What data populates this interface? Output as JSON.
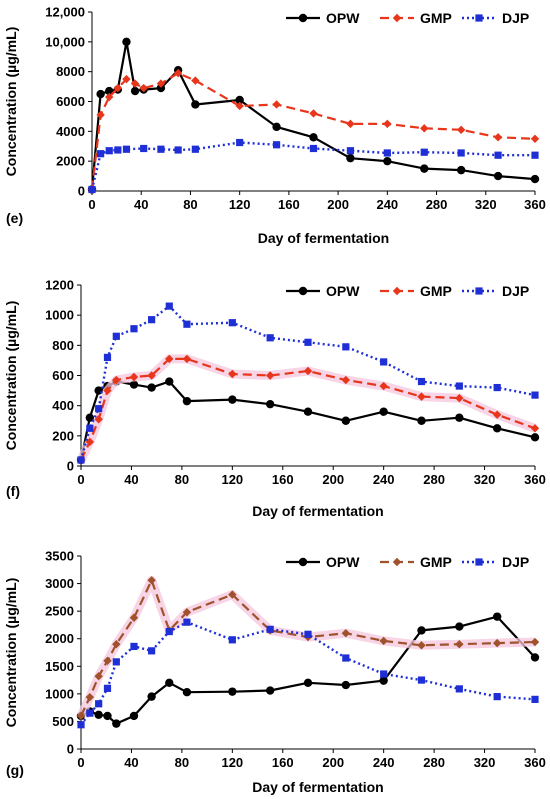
{
  "colors": {
    "OPW": "#000000",
    "GMP": "#e8361c",
    "DJP": "#1f2fd6",
    "GMP_g": "#a0522d",
    "band": "#f4c6de"
  },
  "chart_data": [
    {
      "type": "line",
      "panel_label": "(e)",
      "xlabel": "Day of fermentation",
      "ylabel": "Concentration (µg/mL)",
      "xlim": [
        0,
        360
      ],
      "ylim": [
        0,
        12000
      ],
      "xticks": [
        0,
        40,
        80,
        120,
        160,
        200,
        240,
        280,
        320,
        360
      ],
      "yticks": [
        0,
        2000,
        4000,
        6000,
        8000,
        10000,
        12000
      ],
      "ytick_labels": [
        "0",
        "2000",
        "4000",
        "6000",
        "8000",
        "10,000",
        "12,000"
      ],
      "grid": false,
      "legend": "top-right",
      "series": [
        {
          "name": "OPW",
          "x": [
            0,
            7,
            14,
            21,
            28,
            35,
            42,
            56,
            70,
            84,
            120,
            150,
            180,
            210,
            240,
            270,
            300,
            330,
            360
          ],
          "y": [
            100,
            6500,
            6700,
            6800,
            10000,
            6700,
            6800,
            6900,
            8100,
            5800,
            6100,
            4300,
            3600,
            2200,
            2000,
            1500,
            1400,
            1000,
            800
          ]
        },
        {
          "name": "GMP",
          "x": [
            0,
            7,
            14,
            21,
            28,
            35,
            42,
            56,
            70,
            84,
            120,
            150,
            180,
            210,
            240,
            270,
            300,
            330,
            360
          ],
          "y": [
            100,
            5100,
            6300,
            6900,
            7500,
            7200,
            6900,
            7200,
            7900,
            7400,
            5700,
            5800,
            5200,
            4500,
            4500,
            4200,
            4100,
            3600,
            3500
          ]
        },
        {
          "name": "DJP",
          "x": [
            0,
            7,
            14,
            21,
            28,
            42,
            56,
            70,
            84,
            120,
            150,
            180,
            210,
            240,
            270,
            300,
            330,
            360
          ],
          "y": [
            100,
            2500,
            2700,
            2750,
            2800,
            2850,
            2800,
            2750,
            2800,
            3250,
            3100,
            2850,
            2700,
            2550,
            2600,
            2550,
            2400,
            2400
          ]
        }
      ]
    },
    {
      "type": "line",
      "panel_label": "(f)",
      "xlabel": "Day of fermentation",
      "ylabel": "Concentration (µg/mL)",
      "xlim": [
        0,
        360
      ],
      "ylim": [
        0,
        1200
      ],
      "xticks": [
        0,
        40,
        80,
        120,
        160,
        200,
        240,
        280,
        320,
        360
      ],
      "yticks": [
        0,
        200,
        400,
        600,
        800,
        1000,
        1200
      ],
      "ytick_labels": [
        "0",
        "200",
        "400",
        "600",
        "800",
        "1000",
        "1200"
      ],
      "grid": false,
      "legend": "top-right",
      "series": [
        {
          "name": "OPW",
          "x": [
            0,
            7,
            14,
            21,
            28,
            42,
            56,
            70,
            84,
            120,
            150,
            180,
            210,
            240,
            270,
            300,
            330,
            360
          ],
          "y": [
            40,
            320,
            500,
            530,
            560,
            540,
            520,
            560,
            430,
            440,
            410,
            360,
            300,
            360,
            300,
            320,
            250,
            190
          ]
        },
        {
          "name": "GMP",
          "x": [
            0,
            7,
            14,
            21,
            28,
            42,
            56,
            70,
            84,
            120,
            150,
            180,
            210,
            240,
            270,
            300,
            330,
            360
          ],
          "y": [
            40,
            160,
            310,
            500,
            570,
            590,
            600,
            710,
            710,
            610,
            600,
            630,
            570,
            530,
            460,
            450,
            340,
            250
          ]
        },
        {
          "name": "DJP",
          "x": [
            0,
            7,
            14,
            21,
            28,
            42,
            56,
            70,
            84,
            120,
            150,
            180,
            210,
            240,
            270,
            300,
            330,
            360
          ],
          "y": [
            40,
            250,
            380,
            720,
            860,
            910,
            970,
            1060,
            940,
            950,
            850,
            820,
            790,
            690,
            560,
            530,
            520,
            470
          ]
        }
      ]
    },
    {
      "type": "line",
      "panel_label": "(g)",
      "xlabel": "Day of fermentation",
      "ylabel": "Concentration (µg/mL)",
      "xlim": [
        0,
        360
      ],
      "ylim": [
        0,
        3500
      ],
      "xticks": [
        0,
        40,
        80,
        120,
        160,
        200,
        240,
        280,
        320,
        360
      ],
      "yticks": [
        0,
        500,
        1000,
        1500,
        2000,
        2500,
        3000,
        3500
      ],
      "ytick_labels": [
        "0",
        "500",
        "1000",
        "1500",
        "2000",
        "2500",
        "3000",
        "3500"
      ],
      "grid": false,
      "legend": "top-right",
      "series": [
        {
          "name": "OPW",
          "x": [
            0,
            7,
            14,
            21,
            28,
            42,
            56,
            70,
            84,
            120,
            150,
            180,
            210,
            240,
            270,
            300,
            330,
            360
          ],
          "y": [
            600,
            680,
            620,
            600,
            460,
            600,
            950,
            1200,
            1030,
            1040,
            1060,
            1200,
            1160,
            1240,
            2150,
            2220,
            2400,
            1660
          ]
        },
        {
          "name": "GMP",
          "x": [
            0,
            7,
            14,
            21,
            28,
            42,
            56,
            70,
            84,
            120,
            150,
            180,
            210,
            240,
            270,
            300,
            330,
            360
          ],
          "y": [
            600,
            940,
            1320,
            1600,
            1900,
            2380,
            3060,
            2150,
            2480,
            2800,
            2150,
            2030,
            2100,
            1960,
            1880,
            1900,
            1920,
            1940
          ]
        },
        {
          "name": "DJP",
          "x": [
            0,
            7,
            14,
            21,
            28,
            42,
            56,
            70,
            84,
            120,
            150,
            180,
            210,
            240,
            270,
            300,
            330,
            360
          ],
          "y": [
            440,
            650,
            820,
            1100,
            1580,
            1860,
            1780,
            2130,
            2300,
            1980,
            2170,
            2080,
            1650,
            1360,
            1250,
            1090,
            950,
            900
          ]
        }
      ]
    }
  ]
}
